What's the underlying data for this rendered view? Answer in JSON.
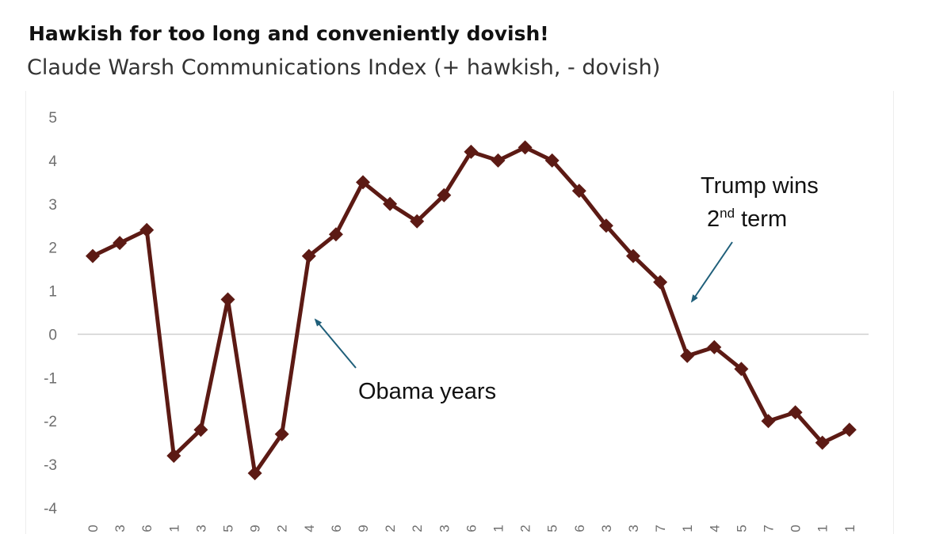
{
  "title": "Hawkish for too long and conveniently dovish!",
  "subtitle": "Claude Warsh Communications Index (+ hawkish, - dovish)",
  "colors": {
    "series": "#5c1a14",
    "arrow": "#1f5f7a",
    "zero_line": "#d0d0d0",
    "tick_text": "#6e6e6e"
  },
  "chart_data": {
    "type": "line",
    "marker": "diamond",
    "ylim": [
      -4,
      5
    ],
    "yticks": [
      5,
      4,
      3,
      2,
      1,
      0,
      -1,
      -2,
      -3,
      -4
    ],
    "x_tick_labels": [
      "0",
      "3",
      "6",
      "1",
      "3",
      "5",
      "9",
      "2",
      "4",
      "6",
      "9",
      "2",
      "2",
      "3",
      "6",
      "1",
      "2",
      "5",
      "6",
      "3",
      "3",
      "7",
      "1",
      "4",
      "5",
      "7",
      "0",
      "1",
      "1"
    ],
    "series": [
      {
        "values": [
          1.8,
          2.1,
          2.4,
          -2.8,
          -2.2,
          0.8,
          -3.2,
          -2.3,
          1.8,
          2.3,
          3.5,
          3.0,
          2.6,
          3.2,
          4.2,
          4.0,
          4.3,
          4.0,
          3.3,
          2.5,
          1.8,
          1.2,
          -0.5,
          -0.3,
          -0.8,
          -2.0,
          -1.8,
          -2.5,
          -2.2
        ]
      }
    ],
    "grid": false,
    "zero_line": true,
    "annotations": [
      {
        "id": "obama",
        "text": "Obama years",
        "points_to_index": 8
      },
      {
        "id": "trump",
        "line1": "Trump wins",
        "line2_main": "2",
        "line2_sup": "nd",
        "line2_rest": " term",
        "points_to_index": 22
      }
    ]
  }
}
